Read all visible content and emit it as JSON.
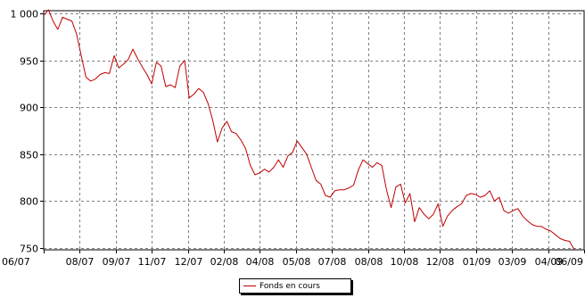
{
  "chart_data": {
    "type": "line",
    "title": "",
    "xlabel": "",
    "ylabel": "",
    "ylim": [
      748,
      1003
    ],
    "y_ticks": [
      750,
      800,
      850,
      900,
      950,
      1000
    ],
    "y_tick_labels": [
      "750",
      "800",
      "850",
      "900",
      "950",
      "1 000"
    ],
    "x_tick_labels": [
      "06/07",
      "08/07",
      "09/07",
      "11/07",
      "12/07",
      "02/08",
      "04/08",
      "05/08",
      "07/08",
      "08/08",
      "10/08",
      "12/08",
      "01/09",
      "03/09",
      "04/09",
      "06/09"
    ],
    "grid": true,
    "legend_position": "bottom-center",
    "series": [
      {
        "name": "Fonds en cours",
        "color": "#c00000",
        "values": [
          998,
          1004,
          992,
          983,
          996,
          994,
          992,
          978,
          955,
          932,
          928,
          930,
          935,
          937,
          936,
          955,
          942,
          946,
          951,
          962,
          952,
          943,
          935,
          925,
          948,
          944,
          922,
          924,
          921,
          944,
          950,
          910,
          914,
          920,
          916,
          904,
          886,
          863,
          878,
          885,
          874,
          872,
          865,
          856,
          838,
          828,
          830,
          834,
          831,
          836,
          844,
          836,
          848,
          852,
          864,
          857,
          850,
          836,
          822,
          818,
          806,
          804,
          811,
          812,
          812,
          814,
          817,
          833,
          844,
          840,
          836,
          841,
          838,
          812,
          793,
          815,
          818,
          798,
          808,
          778,
          793,
          786,
          781,
          786,
          797,
          773,
          784,
          790,
          794,
          797,
          806,
          808,
          807,
          804,
          806,
          811,
          800,
          804,
          790,
          787,
          790,
          792,
          784,
          779,
          775,
          773,
          773,
          770,
          768,
          764,
          760,
          758,
          757,
          748
        ]
      }
    ]
  },
  "legend": {
    "label": "Fonds en cours"
  }
}
